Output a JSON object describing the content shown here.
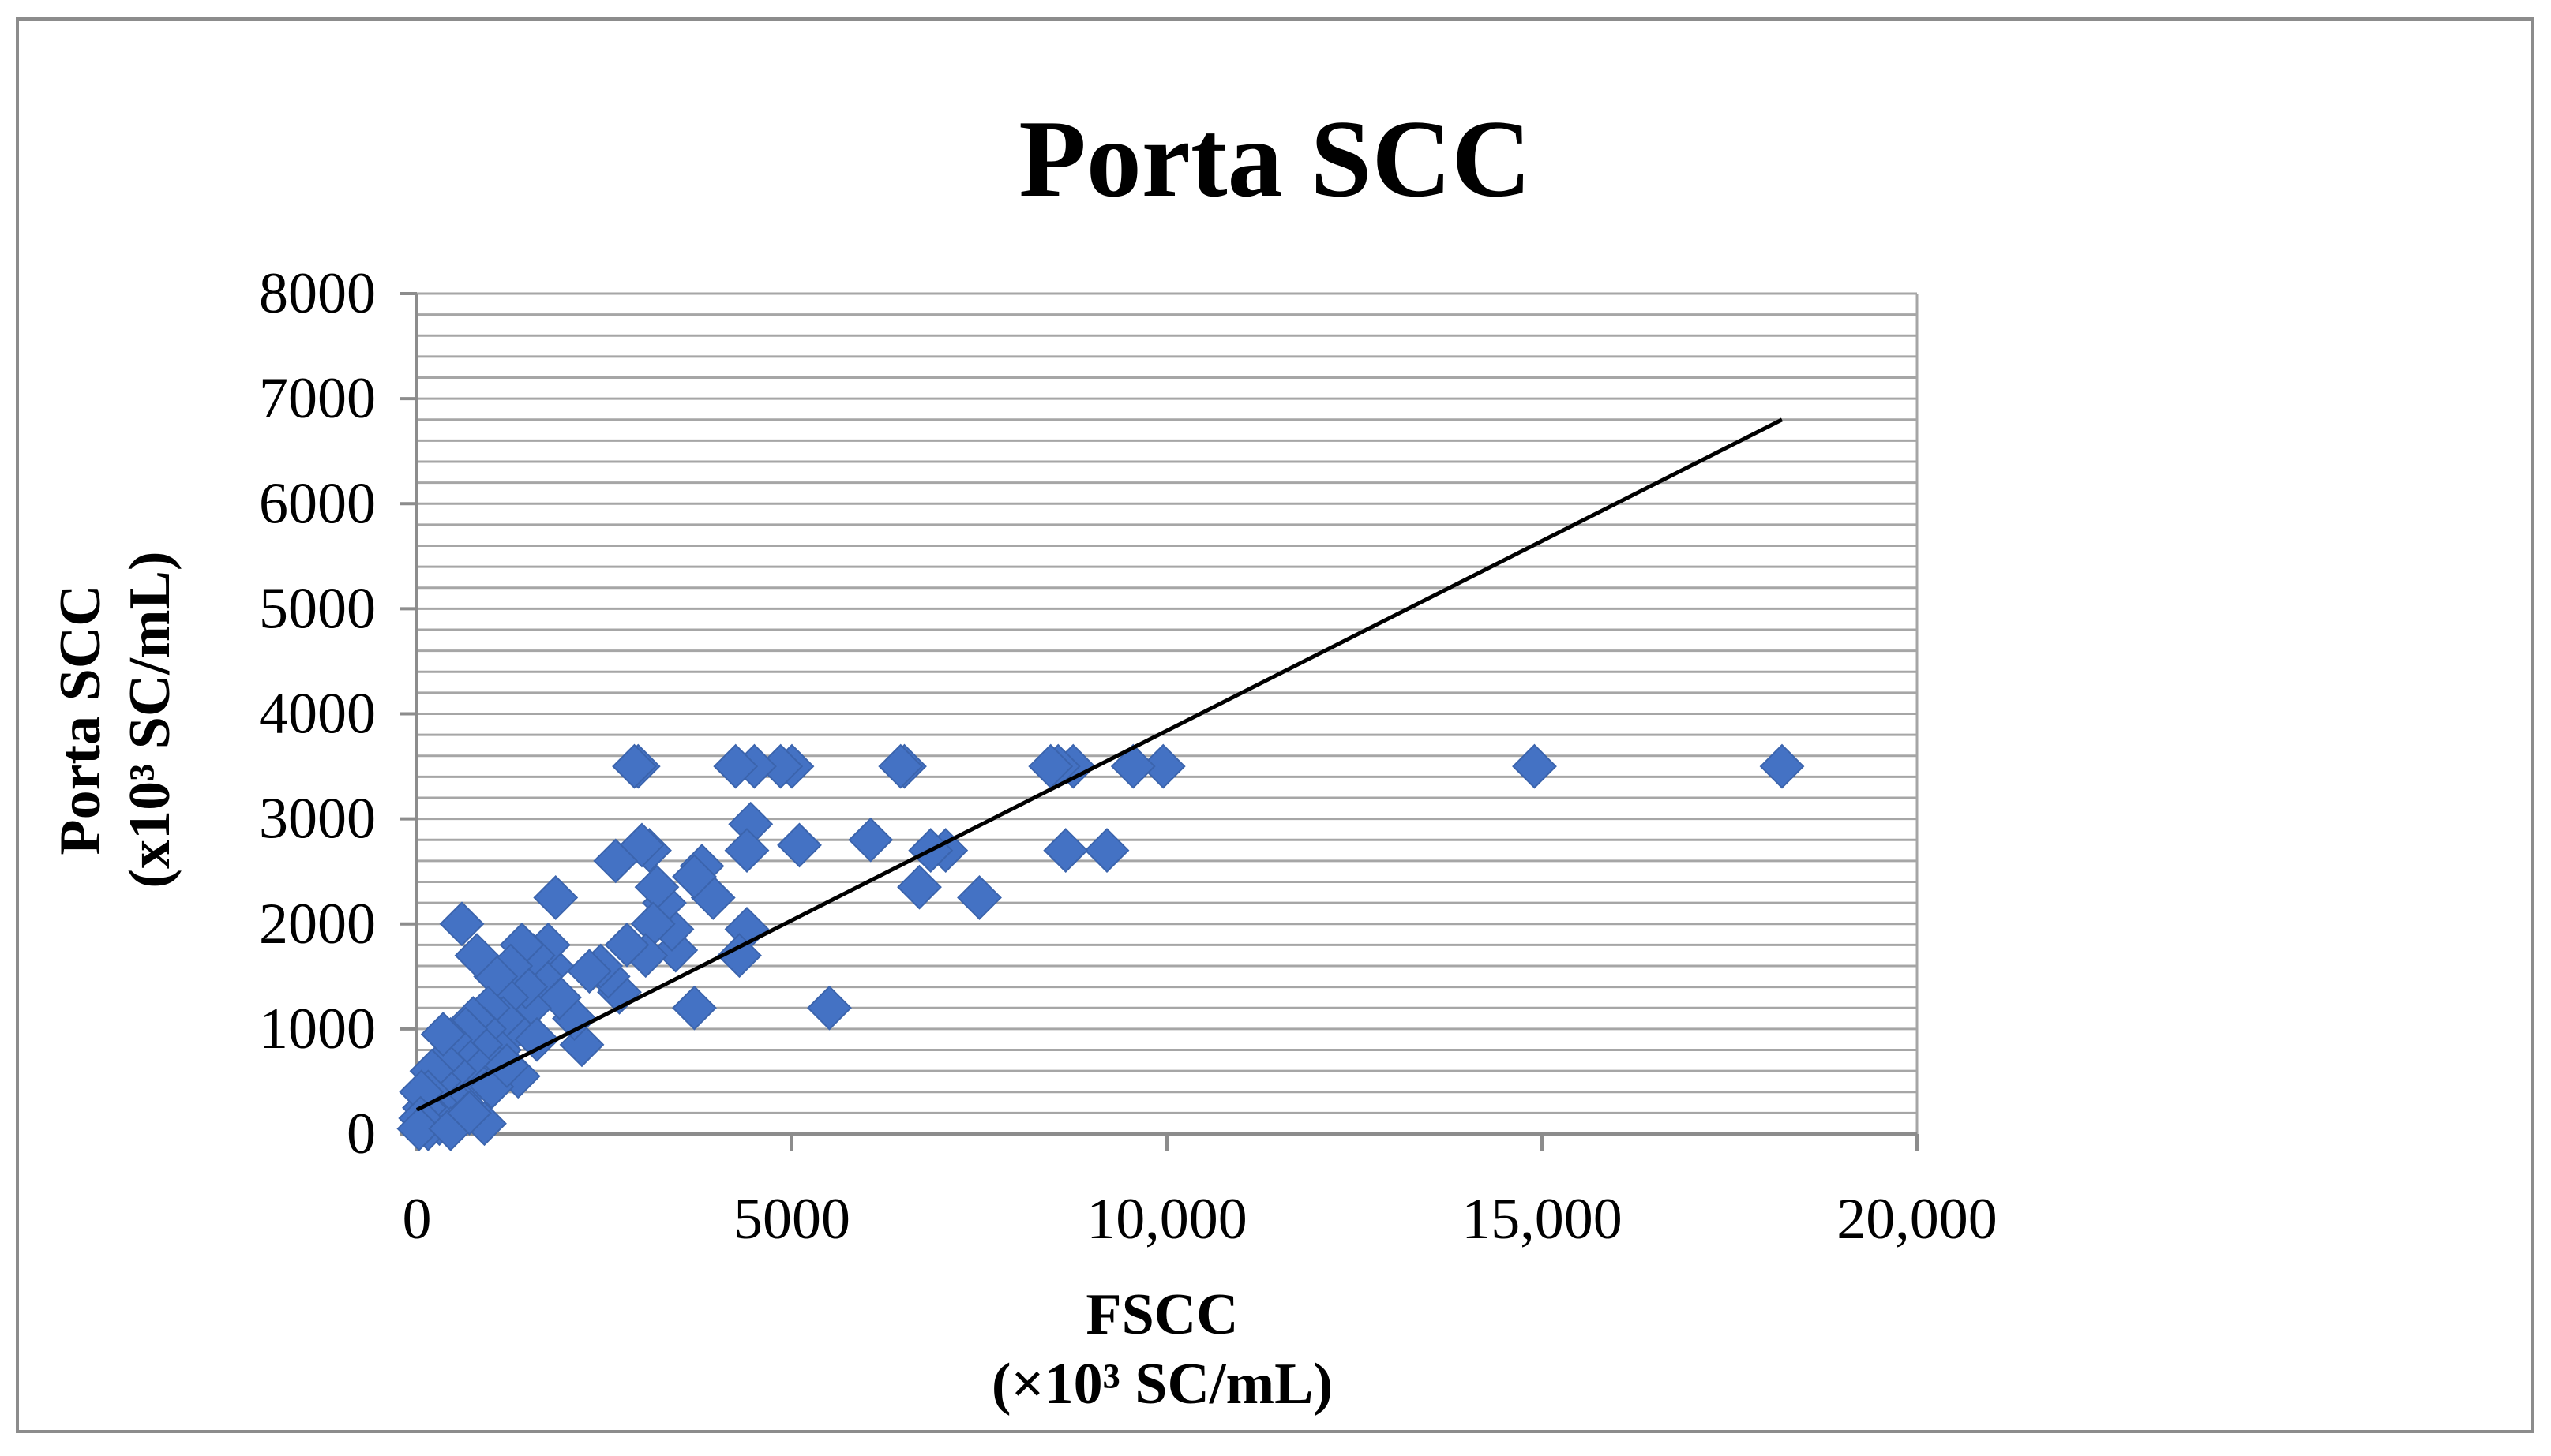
{
  "chart_data": {
    "type": "scatter",
    "title": "Porta SCC",
    "xlabel": "FSCC",
    "xlabel_unit": "(×10³ SC/mL)",
    "ylabel": "Porta SCC",
    "ylabel_unit": "(x10³ SC/mL)",
    "xlim": [
      0,
      20000
    ],
    "ylim": [
      0,
      8000
    ],
    "x_ticks": [
      0,
      5000,
      10000,
      15000,
      20000
    ],
    "x_tick_labels": [
      "0",
      "5000",
      "10,000",
      "15,000",
      "20,000"
    ],
    "y_ticks": [
      0,
      1000,
      2000,
      3000,
      4000,
      5000,
      6000,
      7000,
      8000
    ],
    "y_tick_labels": [
      "0",
      "1000",
      "2000",
      "3000",
      "4000",
      "5000",
      "6000",
      "7000",
      "8000"
    ],
    "y_minor_step": 200,
    "grid": true,
    "marker": "diamond",
    "marker_color": "#4472C4",
    "trendline_color": "#000000",
    "trendline": {
      "x": [
        0,
        18200
      ],
      "y": [
        230,
        6800
      ]
    },
    "series": [
      {
        "name": "Porta SCC",
        "points": [
          [
            18200,
            3500
          ],
          [
            14900,
            3500
          ],
          [
            9950,
            3500
          ],
          [
            9550,
            3500
          ],
          [
            8750,
            3500
          ],
          [
            8550,
            3500
          ],
          [
            8450,
            3500
          ],
          [
            9200,
            2700
          ],
          [
            8650,
            2700
          ],
          [
            7500,
            2250
          ],
          [
            7050,
            2700
          ],
          [
            6850,
            2700
          ],
          [
            6700,
            2350
          ],
          [
            6500,
            3500
          ],
          [
            6450,
            3500
          ],
          [
            6050,
            2800
          ],
          [
            5500,
            1200
          ],
          [
            5100,
            2750
          ],
          [
            5000,
            3500
          ],
          [
            4850,
            3500
          ],
          [
            4500,
            3500
          ],
          [
            4250,
            3500
          ],
          [
            4450,
            2950
          ],
          [
            4400,
            2700
          ],
          [
            4400,
            1950
          ],
          [
            4300,
            1700
          ],
          [
            3950,
            2250
          ],
          [
            3800,
            2550
          ],
          [
            3700,
            2450
          ],
          [
            3700,
            1200
          ],
          [
            3450,
            1750
          ],
          [
            3400,
            1950
          ],
          [
            3300,
            2200
          ],
          [
            3200,
            2350
          ],
          [
            3150,
            2000
          ],
          [
            3100,
            2700
          ],
          [
            3050,
            1700
          ],
          [
            3000,
            2750
          ],
          [
            2950,
            3500
          ],
          [
            2900,
            3500
          ],
          [
            2800,
            1800
          ],
          [
            2700,
            1350
          ],
          [
            2650,
            2600
          ],
          [
            2550,
            1500
          ],
          [
            2450,
            1600
          ],
          [
            2300,
            1550
          ],
          [
            2200,
            850
          ],
          [
            2100,
            1100
          ],
          [
            1900,
            1300
          ],
          [
            1850,
            2250
          ],
          [
            1800,
            1600
          ],
          [
            1750,
            1800
          ],
          [
            1650,
            1500
          ],
          [
            1550,
            1700
          ],
          [
            1500,
            1200
          ],
          [
            1450,
            1400
          ],
          [
            1400,
            1800
          ],
          [
            1350,
            550
          ],
          [
            1300,
            1000
          ],
          [
            1250,
            1600
          ],
          [
            1200,
            1300
          ],
          [
            1150,
            1100
          ],
          [
            1100,
            800
          ],
          [
            1050,
            1500
          ],
          [
            1000,
            700
          ],
          [
            950,
            1200
          ],
          [
            900,
            1000
          ],
          [
            900,
            100
          ],
          [
            850,
            850
          ],
          [
            800,
            1700
          ],
          [
            800,
            500
          ],
          [
            750,
            1100
          ],
          [
            700,
            700
          ],
          [
            650,
            1000
          ],
          [
            600,
            300
          ],
          [
            600,
            2000
          ],
          [
            550,
            800
          ],
          [
            500,
            600
          ],
          [
            450,
            900
          ],
          [
            400,
            400
          ],
          [
            400,
            150
          ],
          [
            350,
            700
          ],
          [
            300,
            500
          ],
          [
            300,
            100
          ],
          [
            250,
            300
          ],
          [
            350,
            950
          ],
          [
            200,
            600
          ],
          [
            200,
            200
          ],
          [
            150,
            400
          ],
          [
            150,
            50
          ],
          [
            100,
            250
          ],
          [
            100,
            100
          ],
          [
            60,
            400
          ],
          [
            50,
            150
          ],
          [
            30,
            50
          ],
          [
            450,
            50
          ],
          [
            700,
            200
          ],
          [
            1000,
            450
          ],
          [
            1200,
            650
          ],
          [
            1600,
            900
          ]
        ]
      }
    ]
  }
}
